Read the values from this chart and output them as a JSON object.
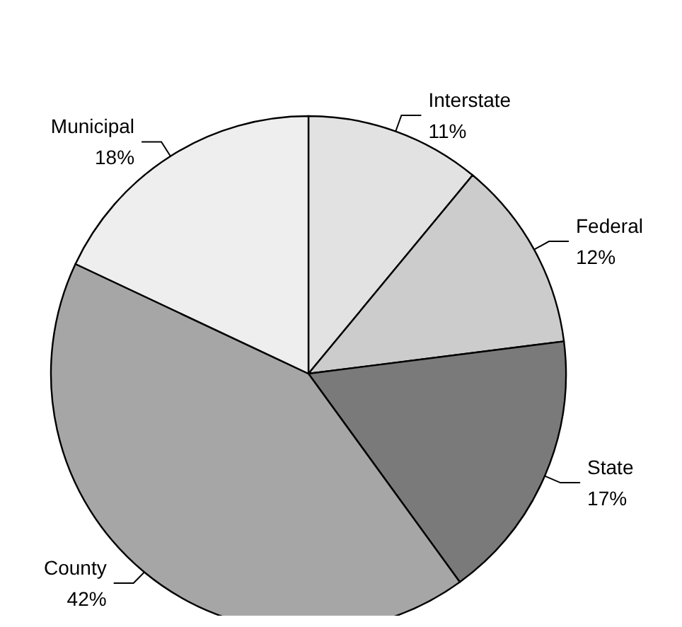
{
  "chart_data": {
    "type": "pie",
    "categories": [
      "Interstate",
      "Federal",
      "State",
      "County",
      "Municipal"
    ],
    "values": [
      11,
      12,
      17,
      42,
      18
    ],
    "value_labels": [
      "11%",
      "12%",
      "17%",
      "42%",
      "18%"
    ],
    "colors": [
      "#e2e2e2",
      "#cccccc",
      "#7a7a7a",
      "#a6a6a6",
      "#eeeeee"
    ],
    "legend": false
  }
}
